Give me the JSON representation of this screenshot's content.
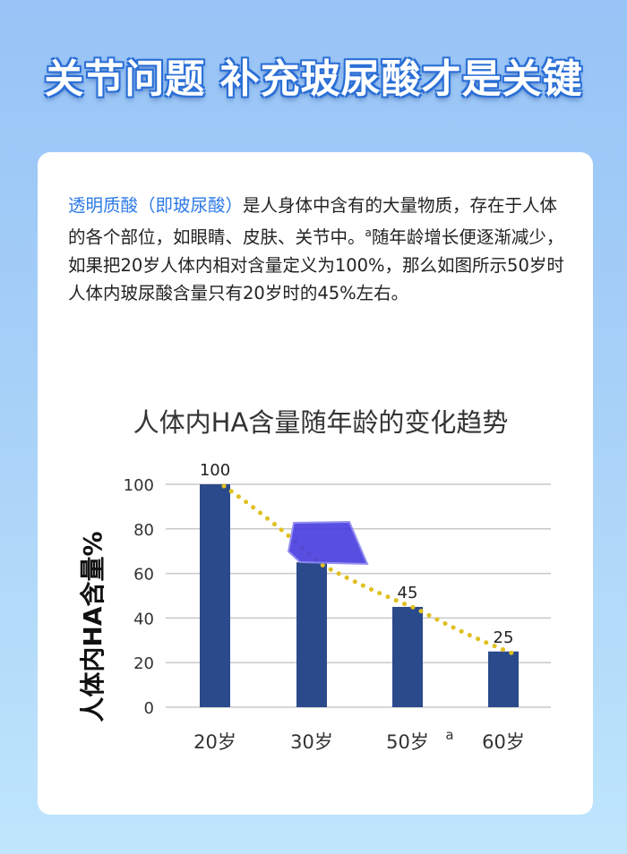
{
  "headline": "关节问题 补充玻尿酸才是关键",
  "paragraph": {
    "highlight": "透明质酸（即玻尿酸）",
    "text_1": "是人身体中含有的大量物质，存在于人体的各个部位，如眼睛、皮肤、关节中。",
    "stray_mark": "a",
    "text_2": "随年龄增长便逐渐减少，如果把20岁人体内相对含量定义为100%，那么如图所示50岁时人体内玻尿酸含量只有20岁时的45%左右。"
  },
  "colors": {
    "bar": "#2b4a8b",
    "trend": "#e0c020",
    "highlight": "#2e7ae6"
  },
  "chart_data": {
    "type": "bar",
    "title": "人体内HA含量随年龄的变化趋势",
    "ylabel": "人体内HA含量%",
    "xlabel": "",
    "categories": [
      "20岁",
      "30岁",
      "50岁",
      "60岁"
    ],
    "values": [
      100,
      65,
      45,
      25
    ],
    "data_labels": [
      "100",
      "",
      "45",
      "25"
    ],
    "yticks": [
      "0",
      "20",
      "40",
      "60",
      "80",
      "100"
    ],
    "ylim": [
      0,
      100
    ],
    "grid": true,
    "trendline": "dotted",
    "stray_mark": "a"
  }
}
